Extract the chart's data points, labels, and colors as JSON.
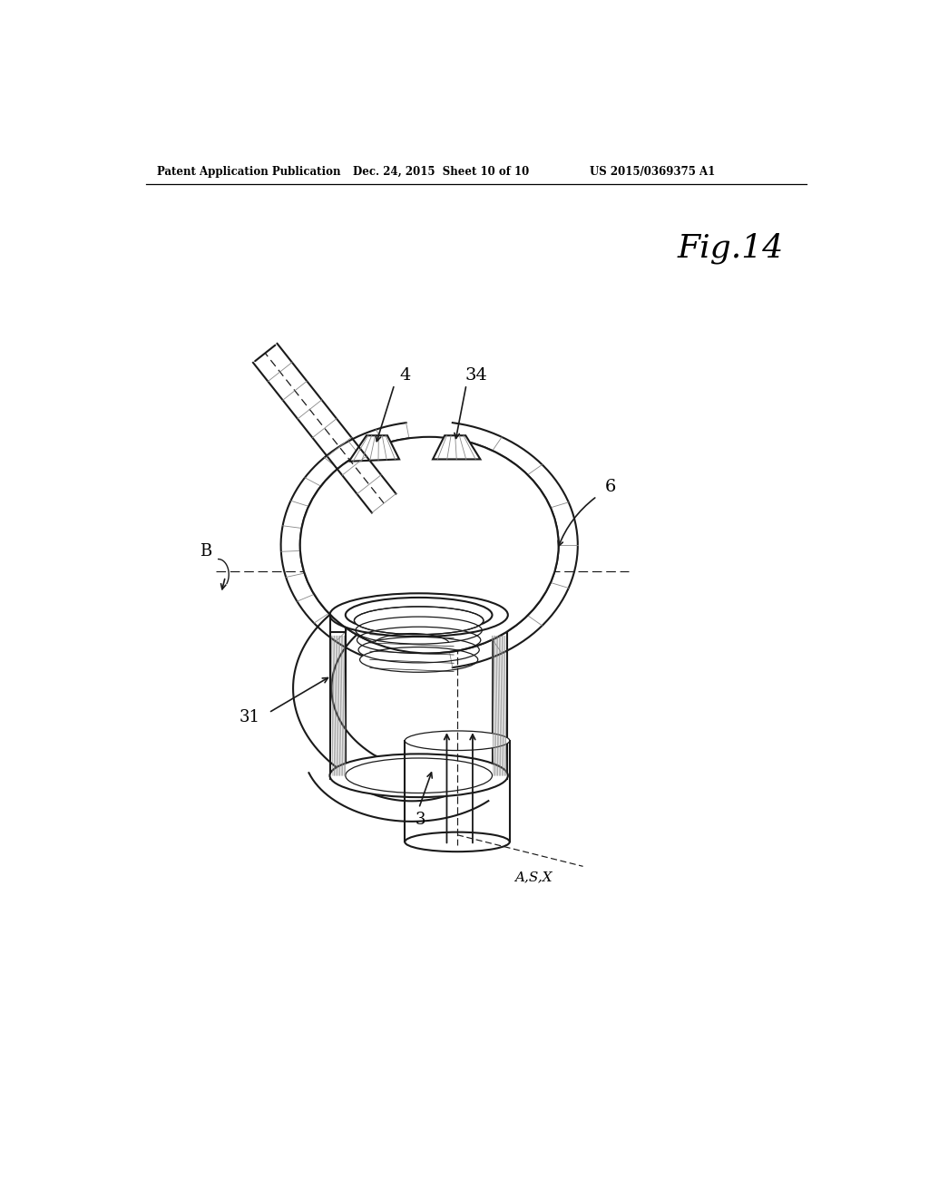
{
  "header_left": "Patent Application Publication",
  "header_mid": "Dec. 24, 2015  Sheet 10 of 10",
  "header_right": "US 2015/0369375 A1",
  "fig_label": "Fig.14",
  "bg": "#ffffff",
  "lc": "#1a1a1a",
  "hc": "#888888",
  "lw": 1.5,
  "lwt": 0.9
}
